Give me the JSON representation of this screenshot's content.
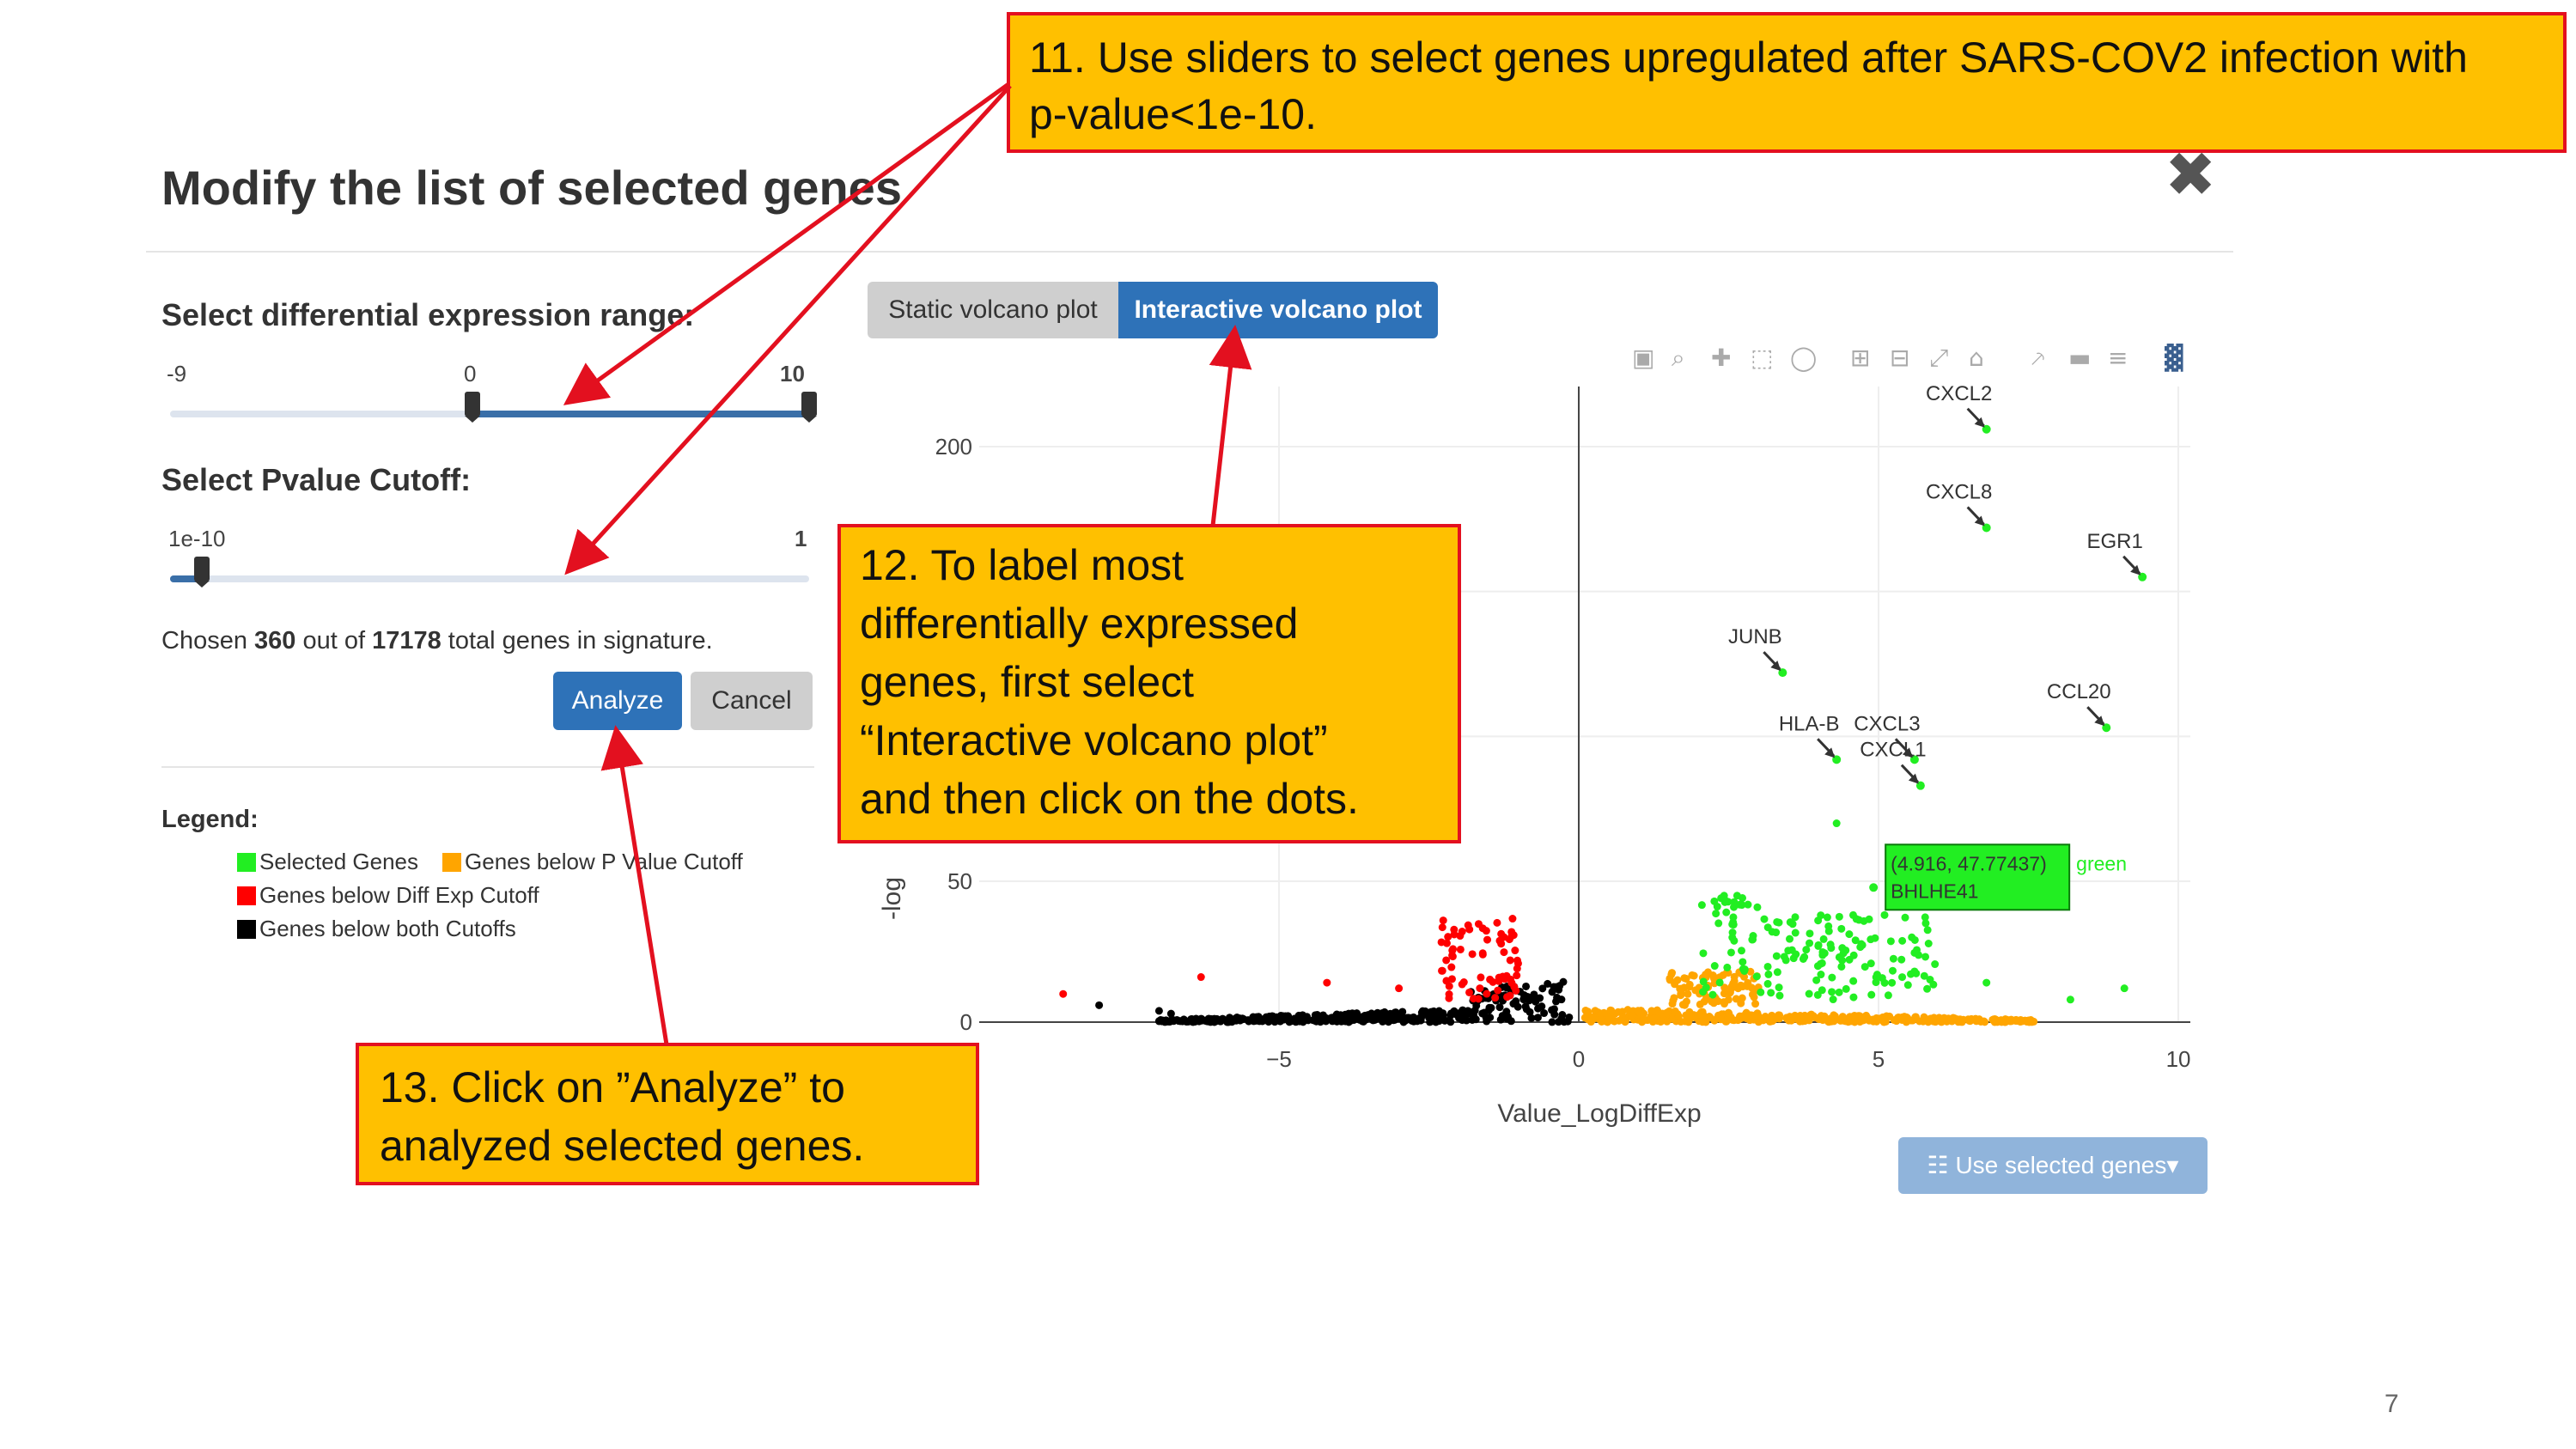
{
  "modal": {
    "title": "Modify the list of selected genes",
    "close_icon": "✖"
  },
  "diff_slider": {
    "label": "Select differential expression range:",
    "min_label": "-9",
    "mid_label": "0",
    "max_label": "10",
    "range_min": -9,
    "range_max": 10,
    "value_low": 0,
    "value_high": 10
  },
  "pvalue_slider": {
    "label": "Select Pvalue Cutoff:",
    "min_label": "1e-10",
    "max_label": "1",
    "value_fraction": 0.05
  },
  "summary": {
    "prefix": "Chosen ",
    "chosen": "360",
    "middle": " out of ",
    "total": "17178",
    "suffix": " total genes in signature."
  },
  "buttons": {
    "analyze": "Analyze",
    "cancel": "Cancel",
    "use_selected": "Use selected genes"
  },
  "legend": {
    "title": "Legend:",
    "items": [
      {
        "label": "Selected Genes",
        "color": "#22ee22"
      },
      {
        "label": "Genes below P Value Cutoff",
        "color": "#ffa500"
      },
      {
        "label": "Genes below Diff Exp Cutoff",
        "color": "#ff0000"
      },
      {
        "label": "Genes below both Cutoffs",
        "color": "#000000"
      }
    ]
  },
  "tabs": {
    "static": "Static volcano plot",
    "interactive": "Interactive volcano plot"
  },
  "toolbar_icons": [
    "camera-icon",
    "zoom-icon",
    "pan-icon",
    "box-select-icon",
    "lasso-icon",
    "zoom-in-icon",
    "zoom-out-icon",
    "autoscale-icon",
    "home-icon",
    "spike-icon",
    "hover-closest-icon",
    "hover-compare-icon",
    "plotly-logo-icon"
  ],
  "chart_data": {
    "type": "scatter",
    "xlabel": "Value_LogDiffExp",
    "ylabel": "-log",
    "x_ticks": [
      "−5",
      "0",
      "5",
      "10"
    ],
    "y_ticks": [
      "0",
      "50",
      "200"
    ],
    "xlim": [
      -10,
      10.2
    ],
    "annotations": [
      {
        "label": "CXCL2",
        "x": 6.8,
        "y": 206
      },
      {
        "label": "CXCL8",
        "x": 6.8,
        "y": 172
      },
      {
        "label": "EGR1",
        "x": 9.4,
        "y": 155
      },
      {
        "label": "JUNB",
        "x": 3.4,
        "y": 122
      },
      {
        "label": "CCL20",
        "x": 8.8,
        "y": 103
      },
      {
        "label": "HLA-B",
        "x": 4.3,
        "y": 92
      },
      {
        "label": "CXCL3",
        "x": 5.6,
        "y": 92
      },
      {
        "label": "CXCL1",
        "x": 5.7,
        "y": 83
      }
    ],
    "tooltip": {
      "coords": "(4.916, 47.77437)",
      "gene": "BHLHE41",
      "group": "green",
      "x": 4.916,
      "y": 47.77437
    }
  },
  "callouts": {
    "c11": [
      "11. Use sliders to select genes upregulated after SARS-COV2 infection with",
      "p-value<1e-10."
    ],
    "c12": [
      "12. To label most",
      "differentially expressed",
      "genes, first select",
      "“Interactive volcano plot”",
      "and then click on the dots."
    ],
    "c13": [
      "13. Click on ”Analyze” to",
      "analyzed selected genes."
    ]
  },
  "page_number": "7"
}
